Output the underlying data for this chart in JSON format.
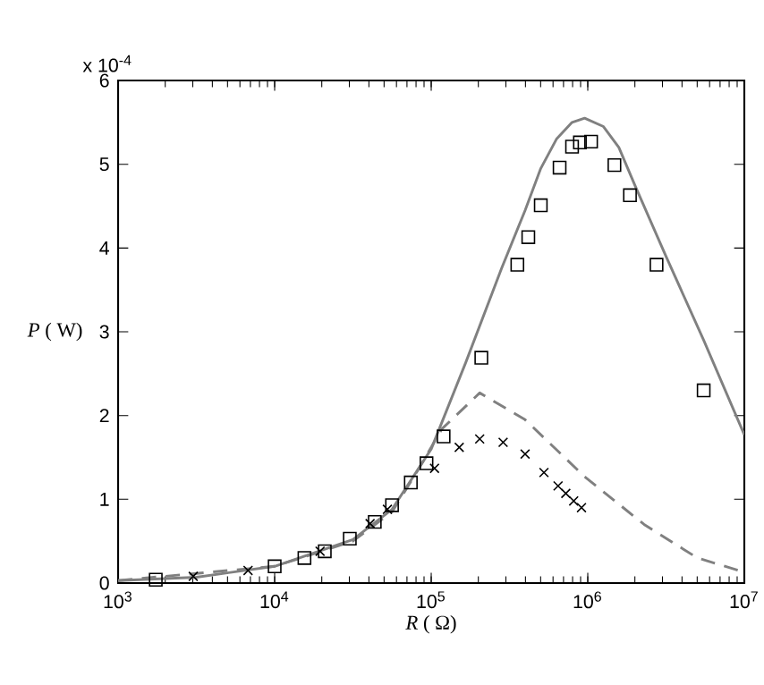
{
  "chart_data": {
    "type": "scatter",
    "xlabel": "*R* ( Ω)",
    "ylabel": "*P* ( W)",
    "annotations": [
      "x 10$^{-4}$"
    ],
    "log": "x",
    "grid": false,
    "xlim": [
      1000,
      10000000
    ],
    "ylim": [
      0,
      6
    ],
    "xticks": [
      {
        "value": 1000,
        "label": "10$^{3}$"
      },
      {
        "value": 10000,
        "label": "10$^{4}$"
      },
      {
        "value": 100000,
        "label": "10$^{5}$"
      },
      {
        "value": 1000000,
        "label": "10$^{6}$"
      },
      {
        "value": 10000000,
        "label": "10$^{7}$"
      }
    ],
    "yticks": [
      0,
      1,
      2,
      3,
      4,
      5,
      6
    ],
    "series": [
      {
        "type": "line",
        "line_style": "solid",
        "marker": "none",
        "color": "#808080",
        "x": [
          1000,
          3160,
          10000,
          31600,
          56200,
          100000,
          166000,
          282000,
          398000,
          501000,
          631000,
          794000,
          955000,
          1260000,
          1580000,
          2000000,
          3160000,
          5500000,
          10000000
        ],
        "values": [
          0.03,
          0.07,
          0.2,
          0.52,
          0.88,
          1.6,
          2.63,
          3.76,
          4.45,
          4.95,
          5.3,
          5.5,
          5.55,
          5.45,
          5.2,
          4.75,
          3.9,
          2.9,
          1.77
        ]
      },
      {
        "type": "line",
        "line_style": "dashed",
        "marker": "none",
        "color": "#808080",
        "x": [
          1000,
          10000,
          31600,
          56200,
          79400,
          117000,
          204000,
          398000,
          955000,
          2290000,
          5010000,
          10000000
        ],
        "values": [
          0.03,
          0.2,
          0.5,
          0.85,
          1.3,
          1.84,
          2.27,
          1.95,
          1.27,
          0.7,
          0.3,
          0.13
        ]
      },
      {
        "marker": "square",
        "color": "#000000",
        "x": [
          1740,
          10000,
          15500,
          20900,
          30200,
          43600,
          56200,
          74100,
          93300,
          120000,
          209000,
          355000,
          417000,
          501000,
          661000,
          794000,
          891000,
          1050000,
          1480000,
          1860000,
          2750000,
          5500000
        ],
        "values": [
          0.04,
          0.2,
          0.3,
          0.38,
          0.53,
          0.73,
          0.93,
          1.2,
          1.43,
          1.75,
          2.69,
          3.8,
          4.13,
          4.51,
          4.96,
          5.21,
          5.26,
          5.27,
          4.99,
          4.63,
          3.8,
          2.3
        ]
      },
      {
        "marker": "cross",
        "color": "#000000",
        "x": [
          3020,
          6760,
          19500,
          40700,
          52500,
          105000,
          151000,
          204000,
          288000,
          398000,
          525000,
          646000,
          724000,
          813000,
          912000
        ],
        "values": [
          0.08,
          0.15,
          0.38,
          0.71,
          0.88,
          1.37,
          1.62,
          1.72,
          1.68,
          1.54,
          1.32,
          1.16,
          1.07,
          0.98,
          0.9
        ]
      }
    ]
  }
}
